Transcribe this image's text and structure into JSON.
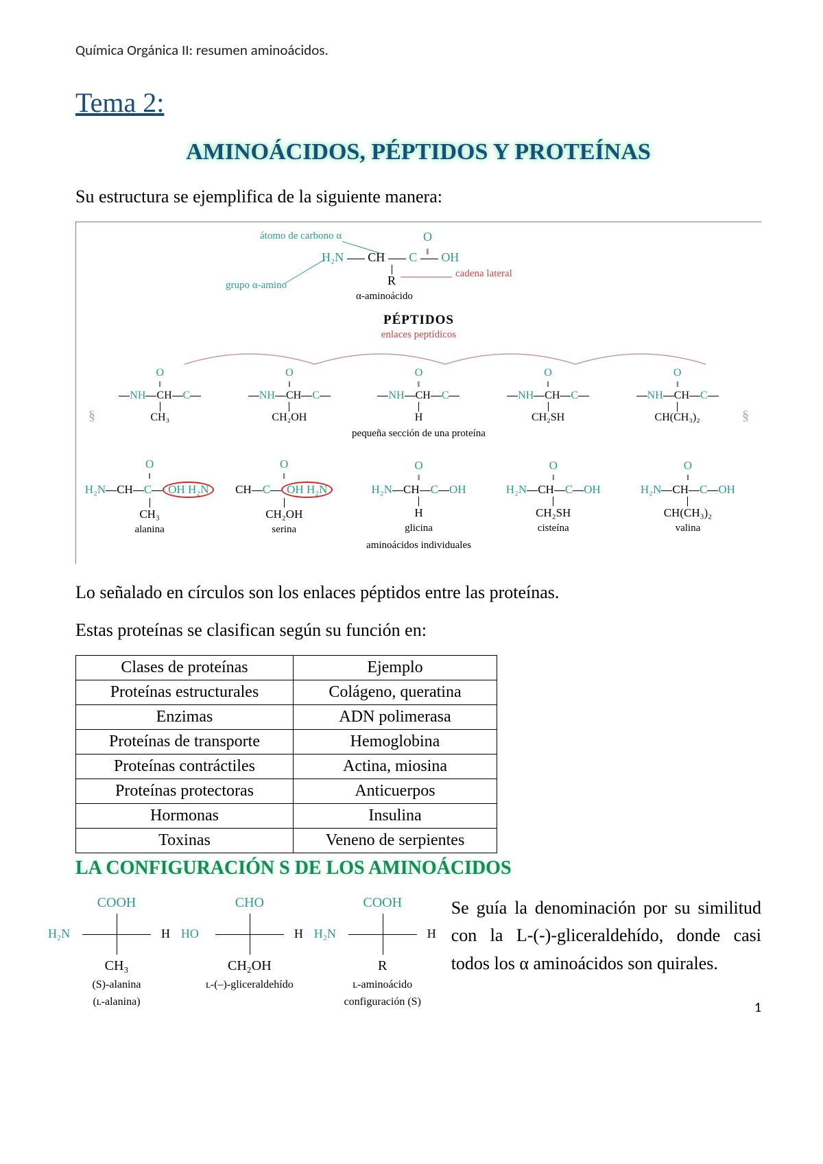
{
  "header": {
    "running": "Química Orgánica II: resumen aminoácidos."
  },
  "tema": {
    "label": "Tema 2",
    "colon": ":"
  },
  "title": "AMINOÁCIDOS, PÉPTIDOS Y PROTEÍNAS",
  "intro": "Su estructura se ejemplifica de la siguiente manera:",
  "diagram": {
    "alpha_carbon": "átomo de carbono α",
    "alpha_amino": "grupo α-amino",
    "side_chain": "cadena lateral",
    "alpha_label": "α-aminoácido",
    "peptidos": "PÉPTIDOS",
    "enlaces": "enlaces peptídicos",
    "protein_section": "pequeña sección de una proteína",
    "individuales": "aminoácidos individuales",
    "formula_top": {
      "h2n": "H₂N",
      "ch": "CH",
      "c": "C",
      "oh": "OH",
      "o": "O",
      "r": "R",
      "dbl": "‖"
    },
    "chain_units": [
      {
        "r": "CH₃"
      },
      {
        "r": "CH₂OH"
      },
      {
        "r": "H"
      },
      {
        "r": "CH₂SH"
      },
      {
        "r": "CH(CH₃)₂"
      }
    ],
    "aminoacids": [
      {
        "r": "CH₃",
        "name": "alanina"
      },
      {
        "r": "CH₂OH",
        "name": "serina"
      },
      {
        "r": "H",
        "name": "glicina"
      },
      {
        "r": "CH₂SH",
        "name": "cisteína"
      },
      {
        "r": "CH(CH₃)₂",
        "name": "valina"
      }
    ],
    "colors": {
      "teal": "#2a9d8f",
      "red_label": "#c44",
      "arc": "#c99",
      "circle": "#d22",
      "border": "#6b84a0"
    }
  },
  "after_diagram_1": "Lo señalado en círculos son los enlaces péptidos entre las proteínas.",
  "after_diagram_2": "Estas proteínas se clasifican según su función en:",
  "table": {
    "columns": [
      "Clases de proteínas",
      "Ejemplo"
    ],
    "rows": [
      [
        "Proteínas estructurales",
        "Colágeno, queratina"
      ],
      [
        "Enzimas",
        "ADN polimerasa"
      ],
      [
        "Proteínas de transporte",
        "Hemoglobina"
      ],
      [
        "Proteínas contráctiles",
        "Actina, miosina"
      ],
      [
        "Proteínas protectoras",
        "Anticuerpos"
      ],
      [
        "Hormonas",
        "Insulina"
      ],
      [
        "Toxinas",
        "Veneno de serpientes"
      ]
    ],
    "col_widths": [
      "280px",
      "260px"
    ],
    "font_size": 24,
    "border_color": "#000000"
  },
  "section2_title": "LA CONFIGURACIÓN S DE LOS AMINOÁCIDOS",
  "fischer": [
    {
      "top": "COOH",
      "left": "H₂N",
      "right": "H",
      "bottom": "CH₃",
      "caption1": "(S)-alanina",
      "caption2": "(ʟ-alanina)",
      "top_color": "#2a9d8f",
      "left_color": "#2a9d8f"
    },
    {
      "top": "CHO",
      "left": "HO",
      "right": "H",
      "bottom": "CH₂OH",
      "caption1": "ʟ-(–)-gliceraldehído",
      "caption2": "",
      "top_color": "#2a9d8f",
      "left_color": "#2a9d8f"
    },
    {
      "top": "COOH",
      "left": "H₂N",
      "right": "H",
      "bottom": "R",
      "caption1": "ʟ-aminoácido",
      "caption2": "configuración (S)",
      "top_color": "#2a9d8f",
      "left_color": "#2a9d8f"
    }
  ],
  "side_para": "Se guía la denominación por su similitud con la L-(-)-gliceraldehído, donde casi todos los α aminoácidos son quirales.",
  "page_number": "1",
  "typography": {
    "body_fontsize": 26,
    "title_fontsize": 34,
    "tema_fontsize": 40,
    "glow_color": "#a6f0c8",
    "title_color": "#1a4e7a",
    "section_color": "#188a54"
  }
}
